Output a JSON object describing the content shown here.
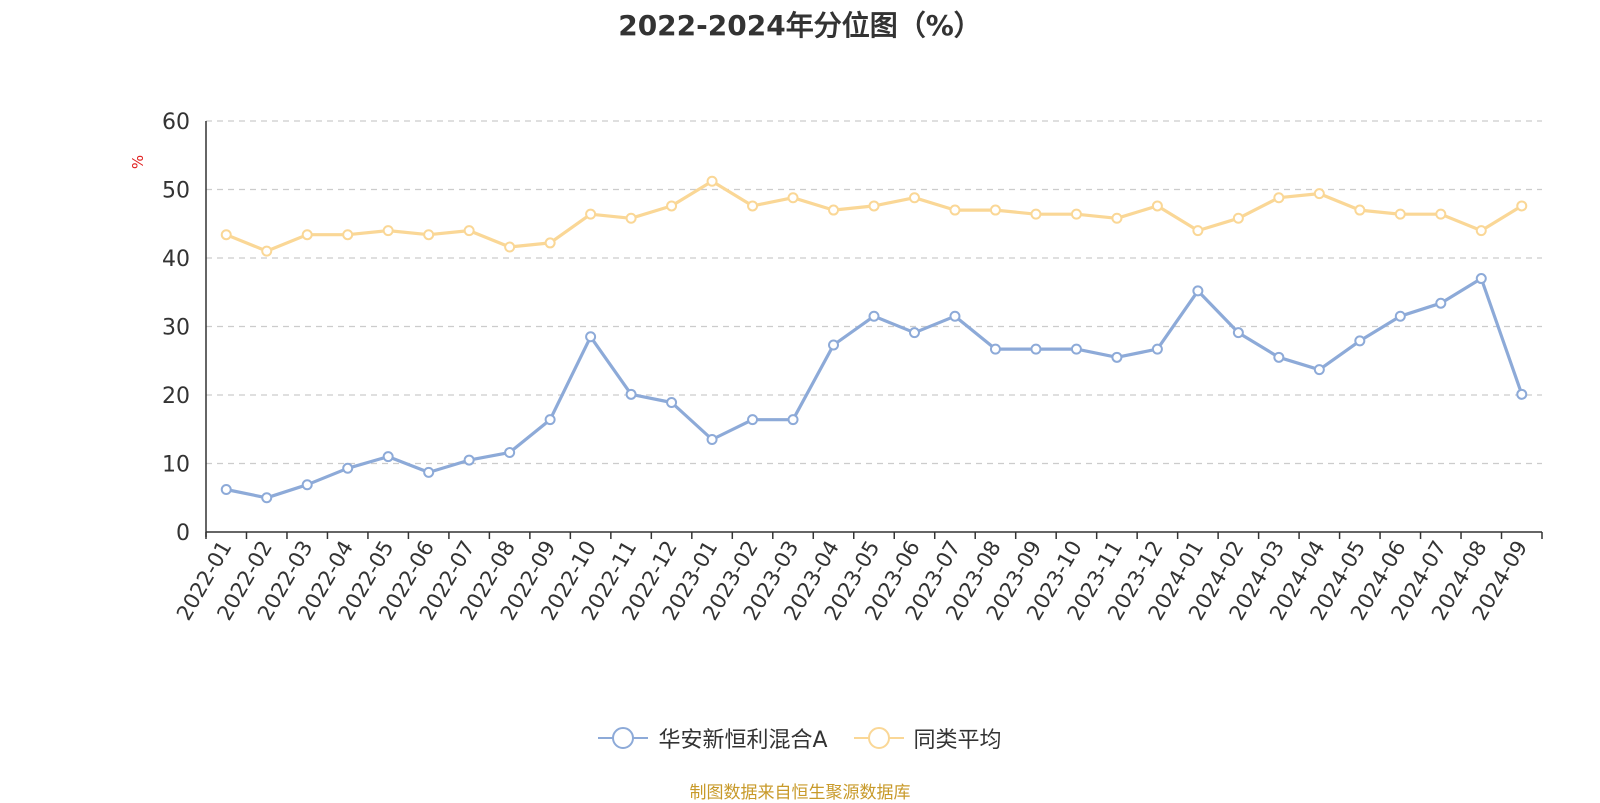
{
  "chart_data": {
    "type": "line",
    "title": "2022-2024年分位图（%）",
    "ylabel": "%",
    "xlabel": "",
    "ylim": [
      0,
      60
    ],
    "yticks": [
      0,
      10,
      20,
      30,
      40,
      50,
      60
    ],
    "grid": true,
    "legend_position": "bottom",
    "categories": [
      "2022-01",
      "2022-02",
      "2022-03",
      "2022-04",
      "2022-05",
      "2022-06",
      "2022-07",
      "2022-08",
      "2022-09",
      "2022-10",
      "2022-11",
      "2022-12",
      "2023-01",
      "2023-02",
      "2023-03",
      "2023-04",
      "2023-05",
      "2023-06",
      "2023-07",
      "2023-08",
      "2023-09",
      "2023-10",
      "2023-11",
      "2023-12",
      "2024-01",
      "2024-02",
      "2024-03",
      "2024-04",
      "2024-05",
      "2024-06",
      "2024-07",
      "2024-08",
      "2024-09"
    ],
    "series": [
      {
        "name": "华安新恒利混合A",
        "color": "#8daad8",
        "values": [
          6.2,
          5.0,
          6.9,
          9.3,
          11.0,
          8.7,
          10.5,
          11.6,
          16.4,
          28.5,
          20.1,
          18.9,
          13.5,
          16.4,
          16.4,
          27.3,
          31.5,
          29.1,
          31.5,
          26.7,
          26.7,
          26.7,
          25.5,
          26.7,
          35.2,
          29.1,
          25.5,
          23.7,
          27.9,
          31.5,
          33.4,
          37.0,
          20.1
        ]
      },
      {
        "name": "同类平均",
        "color": "#fad796",
        "values": [
          43.4,
          41.0,
          43.4,
          43.4,
          44.0,
          43.4,
          44.0,
          41.6,
          42.2,
          46.4,
          45.8,
          47.6,
          51.2,
          47.6,
          48.8,
          47.0,
          47.6,
          48.8,
          47.0,
          47.0,
          46.4,
          46.4,
          45.8,
          47.6,
          44.0,
          45.8,
          48.8,
          49.4,
          47.0,
          46.4,
          46.4,
          44.0,
          47.6
        ]
      }
    ]
  },
  "source_note": "制图数据来自恒生聚源数据库",
  "colors": {
    "ylabel": "#e02020",
    "axis": "#333333",
    "grid": "#cccccc",
    "marker_fill": "#ffffff",
    "source_note": "#c89a2a"
  }
}
